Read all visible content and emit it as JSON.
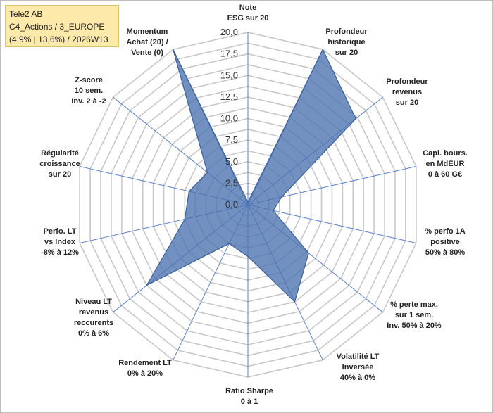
{
  "title_box": {
    "line1": "Tele2 AB",
    "line2": "C4_Actions / 3_EUROPE",
    "line3": "(4,9% | 13,6%) / 2026W13"
  },
  "chart_data": {
    "type": "radar",
    "rlim": [
      0,
      20
    ],
    "ticks": [
      "0,0",
      "2,5",
      "5,0",
      "7,5",
      "10,0",
      "12,5",
      "15,0",
      "17,5",
      "20,0"
    ],
    "grid": true,
    "categories": [
      {
        "label": [
          "Note",
          "ESG sur 20"
        ],
        "value": 0.3
      },
      {
        "label": [
          "Profondeur",
          "historique",
          "sur 20"
        ],
        "value": 20
      },
      {
        "label": [
          "Profondeur",
          "revenus",
          "sur 20"
        ],
        "value": 16
      },
      {
        "label": [
          "Capi. bours.",
          "en MdEUR",
          "0 à 60 G€"
        ],
        "value": 4
      },
      {
        "label": [
          "% perfo 1A",
          "positive",
          "50% à 80%"
        ],
        "value": 3
      },
      {
        "label": [
          "% perte max.",
          "sur 1 sem.",
          "Inv. 50% à 20%"
        ],
        "value": 9
      },
      {
        "label": [
          "Volatilité LT",
          "Inversée",
          "40% à 0%"
        ],
        "value": 12.5
      },
      {
        "label": [
          "Ratio Sharpe",
          "0 à 1"
        ],
        "value": 6
      },
      {
        "label": [
          "Rendement LT",
          "0% à 20%"
        ],
        "value": 5
      },
      {
        "label": [
          "Niveau LT",
          "revenus",
          "reccurents",
          "0% à 6%"
        ],
        "value": 15
      },
      {
        "label": [
          "Perfo. LT",
          "vs Index",
          "-8% à 12%"
        ],
        "value": 7.5
      },
      {
        "label": [
          "Régularité",
          "croissance",
          "sur 20"
        ],
        "value": 7
      },
      {
        "label": [
          "Z-score",
          "10 sem.",
          "Inv. 2 à -2"
        ],
        "value": 6
      },
      {
        "label": [
          "Momentum",
          "Achat (20) /",
          "Vente (0)"
        ],
        "value": 20
      }
    ],
    "series": [
      {
        "fill": "#4a72b0",
        "stroke": "#3a5f9c"
      }
    ],
    "colors": {
      "grid": "#c8c8c8",
      "axis": "#5b82c8"
    }
  }
}
